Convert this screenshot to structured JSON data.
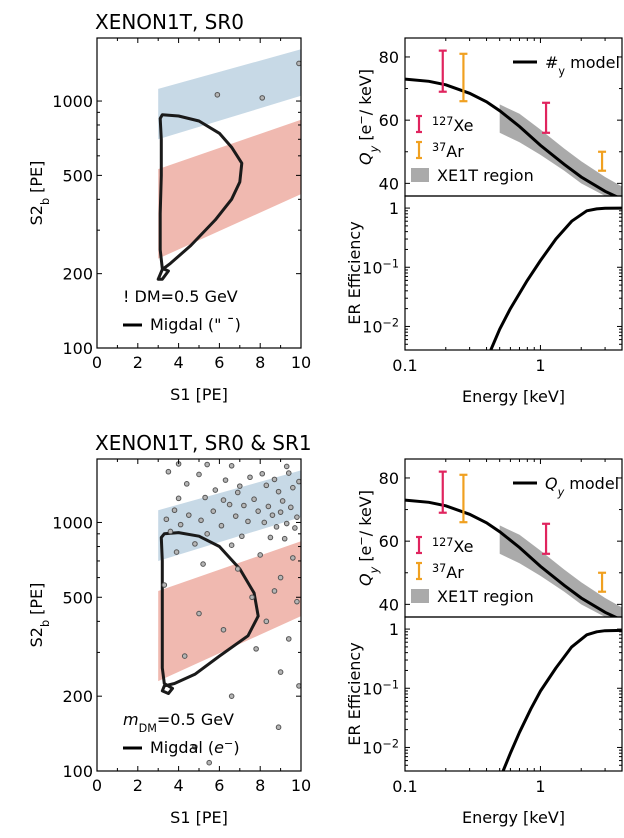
{
  "chart_data": [
    {
      "id": "scatter_sr0",
      "type": "scatter",
      "title": "XENON1T, SR0",
      "xlabel": "S1 [PE]",
      "ylabel": "S2_b [PE]",
      "ylabel_main": "S2",
      "ylabel_sub": "b",
      "ylabel_unit": "[PE]",
      "xlim": [
        0,
        10
      ],
      "ylim": [
        100,
        1800
      ],
      "yscale": "log",
      "xticks": [
        0,
        2,
        4,
        6,
        8,
        10
      ],
      "yticks": [
        100,
        200,
        500,
        1000
      ],
      "legend_mass": "! DM=0.5 GeV",
      "legend_line": "Migdal (\" ¯)",
      "colors": {
        "er_band": "#c7d9e6",
        "nr_band": "#f0b9b0",
        "contour": "#1a1a1a",
        "points": "#8c8c8c"
      },
      "er_band": {
        "x": [
          3,
          10
        ],
        "upper": [
          1120,
          1620
        ],
        "lower": [
          700,
          1050
        ]
      },
      "nr_band": {
        "x": [
          3,
          10
        ],
        "upper": [
          530,
          840
        ],
        "lower": [
          230,
          420
        ]
      },
      "migdal_contour": [
        [
          3.0,
          190
        ],
        [
          3.2,
          190
        ],
        [
          3.5,
          205
        ],
        [
          3.2,
          210
        ],
        [
          3.1,
          250
        ],
        [
          3.1,
          350
        ],
        [
          3.15,
          500
        ],
        [
          3.15,
          700
        ],
        [
          3.1,
          850
        ],
        [
          3.2,
          880
        ],
        [
          4.0,
          870
        ],
        [
          5.0,
          830
        ],
        [
          6.0,
          740
        ],
        [
          6.6,
          650
        ],
        [
          7.1,
          560
        ],
        [
          7.0,
          470
        ],
        [
          6.6,
          400
        ],
        [
          5.8,
          330
        ],
        [
          4.6,
          260
        ],
        [
          3.6,
          220
        ],
        [
          3.2,
          208
        ]
      ],
      "points": [
        [
          5.9,
          1060
        ],
        [
          8.1,
          1030
        ],
        [
          9.9,
          1420
        ]
      ]
    },
    {
      "id": "qy_top",
      "type": "line",
      "xlabel": "",
      "ylabel": "Q_y [e⁻/ keV]",
      "xlim": [
        0.1,
        4
      ],
      "xscale": "log",
      "ylim": [
        36,
        86
      ],
      "yticks": [
        40,
        60,
        80
      ],
      "legend": {
        "model": "#_y model",
        "xe127": "127Xe",
        "ar37": "37Ar",
        "region": "XE1T region"
      },
      "legend_model_main": "#",
      "legend_model_sub": "y",
      "legend_model_rest": " model",
      "legend_xe_sup": "127",
      "legend_xe_main": "Xe",
      "legend_ar_sup": "37",
      "legend_ar_main": "Ar",
      "legend_region": "XE1T region",
      "colors": {
        "model": "#000000",
        "xe127": "#e0245e",
        "ar37": "#f0a020",
        "region": "#aaaaaa"
      },
      "model": {
        "x": [
          0.1,
          0.15,
          0.2,
          0.3,
          0.4,
          0.5,
          0.7,
          1.0,
          1.5,
          2.0,
          3.0,
          4.0
        ],
        "y": [
          73,
          72.3,
          71.2,
          68.5,
          65.8,
          63,
          58,
          52,
          46,
          42,
          37.5,
          35
        ]
      },
      "region": {
        "x": [
          0.5,
          0.7,
          1.0,
          1.5,
          2.0,
          3.0,
          4.0
        ],
        "upper": [
          65,
          62,
          57,
          51,
          47,
          42,
          39
        ],
        "lower": [
          56,
          53,
          49,
          44,
          40,
          36,
          34
        ]
      },
      "xe127_points": [
        {
          "x": 0.19,
          "y": 75.5,
          "lo": 69,
          "hi": 82
        },
        {
          "x": 1.1,
          "y": 60.5,
          "lo": 56,
          "hi": 65.5
        }
      ],
      "ar37_points": [
        {
          "x": 0.27,
          "y": 73.5,
          "lo": 66,
          "hi": 81
        },
        {
          "x": 2.85,
          "y": 47,
          "lo": 44,
          "hi": 50
        }
      ]
    },
    {
      "id": "eff_top",
      "type": "line",
      "xlabel": "Energy [keV]",
      "ylabel": "ER Efficiency",
      "xlim": [
        0.1,
        4
      ],
      "xscale": "log",
      "ylim": [
        0.004,
        1.6
      ],
      "yscale": "log",
      "xticks": [
        {
          "v": 0.1,
          "label": "0.1"
        },
        {
          "v": 1,
          "label": "1"
        }
      ],
      "yticks": [
        {
          "v": 1,
          "label": "1",
          "base": "",
          "exp": ""
        },
        {
          "v": 0.1,
          "label": "10^-1",
          "base": "10",
          "exp": "−1"
        },
        {
          "v": 0.01,
          "label": "10^-2",
          "base": "10",
          "exp": "−2"
        }
      ],
      "curve": {
        "x": [
          0.43,
          0.5,
          0.6,
          0.8,
          1.0,
          1.3,
          1.7,
          2.2,
          2.6,
          3.0,
          4.0
        ],
        "y": [
          0.004,
          0.009,
          0.02,
          0.06,
          0.13,
          0.3,
          0.6,
          0.9,
          0.97,
          0.99,
          1.0
        ]
      }
    },
    {
      "id": "scatter_sr01",
      "type": "scatter",
      "title": "XENON1T, SR0 & SR1",
      "xlabel": "S1 [PE]",
      "ylabel": "S2_b [PE]",
      "ylabel_main": "S2",
      "ylabel_sub": "b",
      "ylabel_unit": "[PE]",
      "xlim": [
        0,
        10
      ],
      "ylim": [
        100,
        1800
      ],
      "yscale": "log",
      "xticks": [
        0,
        2,
        4,
        6,
        8,
        10
      ],
      "yticks": [
        100,
        200,
        500,
        1000
      ],
      "legend_mass_main": "m",
      "legend_mass_sub": "DM",
      "legend_mass_rest": "=0.5 GeV",
      "legend_line_main": "Migdal (",
      "legend_line_e": "e",
      "legend_line_sup": "−",
      "legend_line_close": ")",
      "colors": {
        "er_band": "#c7d9e6",
        "nr_band": "#f0b9b0",
        "contour": "#1a1a1a",
        "points": "#8c8c8c"
      },
      "er_band": {
        "x": [
          3,
          10
        ],
        "upper": [
          1120,
          1620
        ],
        "lower": [
          700,
          1050
        ]
      },
      "nr_band": {
        "x": [
          3,
          10
        ],
        "upper": [
          530,
          840
        ],
        "lower": [
          230,
          420
        ]
      },
      "migdal_contour": [
        [
          3.2,
          210
        ],
        [
          3.5,
          205
        ],
        [
          3.7,
          215
        ],
        [
          3.3,
          225
        ],
        [
          3.2,
          260
        ],
        [
          3.2,
          350
        ],
        [
          3.2,
          500
        ],
        [
          3.2,
          700
        ],
        [
          3.15,
          870
        ],
        [
          3.3,
          900
        ],
        [
          4.0,
          910
        ],
        [
          5.0,
          880
        ],
        [
          6.0,
          800
        ],
        [
          7.0,
          650
        ],
        [
          7.7,
          520
        ],
        [
          7.9,
          420
        ],
        [
          7.4,
          350
        ],
        [
          6.0,
          290
        ],
        [
          4.8,
          245
        ],
        [
          3.8,
          225
        ],
        [
          3.3,
          220
        ]
      ],
      "points": [
        [
          4.0,
          1720
        ],
        [
          5.4,
          1710
        ],
        [
          6.6,
          1690
        ],
        [
          9.3,
          1680
        ],
        [
          3.5,
          1600
        ],
        [
          5.0,
          1560
        ],
        [
          8.1,
          1570
        ],
        [
          9.4,
          1580
        ],
        [
          7.5,
          1520
        ],
        [
          6.3,
          1480
        ],
        [
          8.7,
          1490
        ],
        [
          9.9,
          1460
        ],
        [
          4.4,
          1430
        ],
        [
          7.0,
          1400
        ],
        [
          8.3,
          1410
        ],
        [
          9.6,
          1380
        ],
        [
          5.8,
          1350
        ],
        [
          6.9,
          1320
        ],
        [
          8.9,
          1330
        ],
        [
          4.0,
          1250
        ],
        [
          5.3,
          1260
        ],
        [
          6.2,
          1230
        ],
        [
          7.7,
          1240
        ],
        [
          9.1,
          1220
        ],
        [
          6.5,
          1180
        ],
        [
          7.2,
          1170
        ],
        [
          8.4,
          1160
        ],
        [
          9.5,
          1150
        ],
        [
          3.8,
          1120
        ],
        [
          5.7,
          1110
        ],
        [
          7.9,
          1110
        ],
        [
          9.0,
          1100
        ],
        [
          4.5,
          1070
        ],
        [
          6.8,
          1060
        ],
        [
          8.6,
          1070
        ],
        [
          9.8,
          1050
        ],
        [
          3.4,
          1030
        ],
        [
          5.1,
          1020
        ],
        [
          7.4,
          1010
        ],
        [
          8.2,
          1000
        ],
        [
          9.3,
          990
        ],
        [
          4.1,
          980
        ],
        [
          6.1,
          970
        ],
        [
          8.8,
          960
        ],
        [
          9.7,
          950
        ],
        [
          3.6,
          920
        ],
        [
          5.4,
          900
        ],
        [
          7.1,
          880
        ],
        [
          8.5,
          870
        ],
        [
          9.2,
          860
        ],
        [
          4.8,
          820
        ],
        [
          6.6,
          810
        ],
        [
          3.9,
          760
        ],
        [
          8.0,
          740
        ],
        [
          9.6,
          720
        ],
        [
          5.2,
          680
        ],
        [
          6.9,
          650
        ],
        [
          9.0,
          600
        ],
        [
          3.3,
          560
        ],
        [
          8.7,
          530
        ],
        [
          7.6,
          500
        ],
        [
          9.8,
          480
        ],
        [
          5.0,
          430
        ],
        [
          8.3,
          400
        ],
        [
          6.2,
          370
        ],
        [
          9.4,
          340
        ],
        [
          7.8,
          310
        ],
        [
          4.3,
          290
        ],
        [
          9.0,
          250
        ],
        [
          9.9,
          220
        ],
        [
          6.6,
          200
        ],
        [
          8.9,
          150
        ],
        [
          4.8,
          125
        ],
        [
          5.5,
          108
        ]
      ]
    },
    {
      "id": "qy_bottom",
      "type": "line",
      "xlabel": "",
      "ylabel": "Q_y [e⁻/ keV]",
      "xlim": [
        0.1,
        4
      ],
      "xscale": "log",
      "ylim": [
        36,
        86
      ],
      "yticks": [
        40,
        60,
        80
      ],
      "legend": {
        "model": "Q_y model",
        "xe127": "127Xe",
        "ar37": "37Ar",
        "region": "XE1T region"
      },
      "legend_model_main": "Q",
      "legend_model_sub": "y",
      "legend_model_rest": " model",
      "legend_xe_sup": "127",
      "legend_xe_main": "Xe",
      "legend_ar_sup": "37",
      "legend_ar_main": "Ar",
      "legend_region": "XE1T region",
      "colors": {
        "model": "#000000",
        "xe127": "#e0245e",
        "ar37": "#f0a020",
        "region": "#aaaaaa"
      },
      "model": {
        "x": [
          0.1,
          0.15,
          0.2,
          0.3,
          0.4,
          0.5,
          0.7,
          1.0,
          1.5,
          2.0,
          3.0,
          4.0
        ],
        "y": [
          73,
          72.3,
          71.2,
          68.5,
          65.8,
          63,
          58,
          52,
          46,
          42,
          37.5,
          35
        ]
      },
      "region": {
        "x": [
          0.5,
          0.7,
          1.0,
          1.5,
          2.0,
          3.0,
          4.0
        ],
        "upper": [
          65,
          62,
          57,
          51,
          47,
          42,
          39
        ],
        "lower": [
          56,
          53,
          49,
          44,
          40,
          36,
          34
        ]
      },
      "xe127_points": [
        {
          "x": 0.19,
          "y": 75.5,
          "lo": 69,
          "hi": 82
        },
        {
          "x": 1.1,
          "y": 60.5,
          "lo": 56,
          "hi": 65.5
        }
      ],
      "ar37_points": [
        {
          "x": 0.27,
          "y": 73.5,
          "lo": 66,
          "hi": 81
        },
        {
          "x": 2.85,
          "y": 47,
          "lo": 44,
          "hi": 50
        }
      ]
    },
    {
      "id": "eff_bottom",
      "type": "line",
      "xlabel": "Energy [keV]",
      "ylabel": "ER Efficiency",
      "xlim": [
        0.1,
        4
      ],
      "xscale": "log",
      "ylim": [
        0.004,
        1.6
      ],
      "yscale": "log",
      "xticks": [
        {
          "v": 0.1,
          "label": "0.1"
        },
        {
          "v": 1,
          "label": "1"
        }
      ],
      "yticks": [
        {
          "v": 1,
          "label": "1",
          "base": "",
          "exp": ""
        },
        {
          "v": 0.1,
          "label": "10^-1",
          "base": "10",
          "exp": "−1"
        },
        {
          "v": 0.01,
          "label": "10^-2",
          "base": "10",
          "exp": "−2"
        }
      ],
      "curve": {
        "x": [
          0.53,
          0.6,
          0.7,
          0.85,
          1.0,
          1.3,
          1.7,
          2.2,
          2.6,
          3.0,
          4.0
        ],
        "y": [
          0.004,
          0.008,
          0.018,
          0.045,
          0.09,
          0.22,
          0.5,
          0.8,
          0.9,
          0.94,
          0.95
        ]
      }
    }
  ]
}
